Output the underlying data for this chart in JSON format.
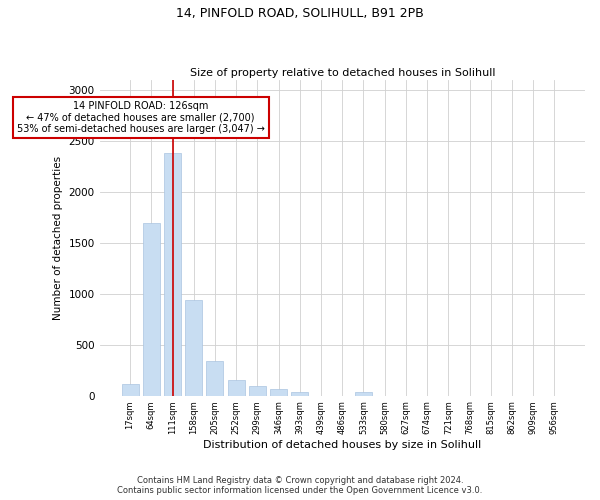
{
  "title_line1": "14, PINFOLD ROAD, SOLIHULL, B91 2PB",
  "title_line2": "Size of property relative to detached houses in Solihull",
  "xlabel": "Distribution of detached houses by size in Solihull",
  "ylabel": "Number of detached properties",
  "bin_labels": [
    "17sqm",
    "64sqm",
    "111sqm",
    "158sqm",
    "205sqm",
    "252sqm",
    "299sqm",
    "346sqm",
    "393sqm",
    "439sqm",
    "486sqm",
    "533sqm",
    "580sqm",
    "627sqm",
    "674sqm",
    "721sqm",
    "768sqm",
    "815sqm",
    "862sqm",
    "909sqm",
    "956sqm"
  ],
  "bar_values": [
    115,
    1700,
    2380,
    940,
    340,
    155,
    90,
    60,
    40,
    0,
    0,
    35,
    0,
    0,
    0,
    0,
    0,
    0,
    0,
    0,
    0
  ],
  "bar_color": "#c8ddf2",
  "bar_edgecolor": "#aac4e0",
  "ylim": [
    0,
    3100
  ],
  "yticks": [
    0,
    500,
    1000,
    1500,
    2000,
    2500,
    3000
  ],
  "vline_x_index": 2,
  "annotation_title": "14 PINFOLD ROAD: 126sqm",
  "annotation_line2": "← 47% of detached houses are smaller (2,700)",
  "annotation_line3": "53% of semi-detached houses are larger (3,047) →",
  "annotation_box_color": "#ffffff",
  "annotation_box_edgecolor": "#cc0000",
  "vline_color": "#cc0000",
  "footer_line1": "Contains HM Land Registry data © Crown copyright and database right 2024.",
  "footer_line2": "Contains public sector information licensed under the Open Government Licence v3.0.",
  "background_color": "#ffffff",
  "grid_color": "#d0d0d0",
  "title_fontsize": 9,
  "subtitle_fontsize": 8,
  "ylabel_fontsize": 7.5,
  "xlabel_fontsize": 8,
  "ytick_fontsize": 7.5,
  "xtick_fontsize": 6,
  "annotation_fontsize": 7,
  "footer_fontsize": 6
}
